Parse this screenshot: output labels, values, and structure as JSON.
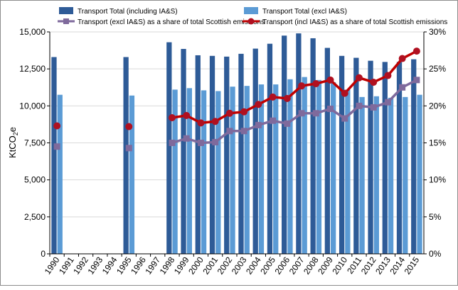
{
  "chart_data": {
    "type": "bar",
    "title": "",
    "xlabel": "",
    "ylabel_main": "KtCO",
    "ylabel_sub": "2",
    "ylabel_suffix": "e",
    "categories": [
      "1990",
      "1991",
      "1992",
      "1993",
      "1994",
      "1995",
      "1996",
      "1997",
      "1998",
      "1999",
      "2000",
      "2001",
      "2002",
      "2003",
      "2004",
      "2005",
      "2006",
      "2007",
      "2008",
      "2009",
      "2010",
      "2011",
      "2012",
      "2013",
      "2014",
      "2015"
    ],
    "ylim": [
      0,
      15000
    ],
    "y2lim": [
      0,
      30
    ],
    "yticks": [
      "0",
      "2,500",
      "5,000",
      "7,500",
      "10,000",
      "12,500",
      "15,000"
    ],
    "y2ticks": [
      "0%",
      "5%",
      "10%",
      "15%",
      "20%",
      "25%",
      "30%"
    ],
    "colors": {
      "incl_bar": "#2e5b97",
      "excl_bar": "#5b9bd5",
      "excl_line": "#7f6a9c",
      "incl_line": "#c00000",
      "incl_marker": "#b01020"
    },
    "series": [
      {
        "name": "Transport Total (including IA&S)",
        "kind": "bar",
        "values": [
          13300,
          null,
          null,
          null,
          null,
          13300,
          null,
          null,
          14300,
          13850,
          13420,
          13380,
          13330,
          13520,
          13870,
          14200,
          14750,
          14900,
          14570,
          13920,
          13380,
          13250,
          13050,
          12970,
          12970,
          13150
        ]
      },
      {
        "name": "Transport Total (excl IA&S)",
        "kind": "bar",
        "values": [
          10750,
          null,
          null,
          null,
          null,
          10700,
          null,
          null,
          11100,
          11200,
          11050,
          11000,
          11300,
          11350,
          11450,
          11450,
          11800,
          11950,
          11750,
          11600,
          11100,
          10600,
          10650,
          10550,
          10600,
          10750
        ]
      },
      {
        "name": "Transport (excl IA&S) as a share of total Scottish emissions",
        "kind": "line",
        "values": [
          14.5,
          null,
          null,
          null,
          null,
          14.3,
          null,
          null,
          15.0,
          15.6,
          15.0,
          15.1,
          16.6,
          16.6,
          17.4,
          18.0,
          17.6,
          19.0,
          19.0,
          19.6,
          18.3,
          20.0,
          19.8,
          20.5,
          22.5,
          23.5
        ]
      },
      {
        "name": "Transport (incl IA&S) as a share of total Scottish emissions",
        "kind": "line",
        "values": [
          17.3,
          null,
          null,
          null,
          null,
          17.2,
          null,
          null,
          18.4,
          18.7,
          17.7,
          17.9,
          19.0,
          19.2,
          20.2,
          21.2,
          21.0,
          22.7,
          23.0,
          23.5,
          21.7,
          23.8,
          23.2,
          24.1,
          26.4,
          27.4
        ]
      }
    ]
  }
}
